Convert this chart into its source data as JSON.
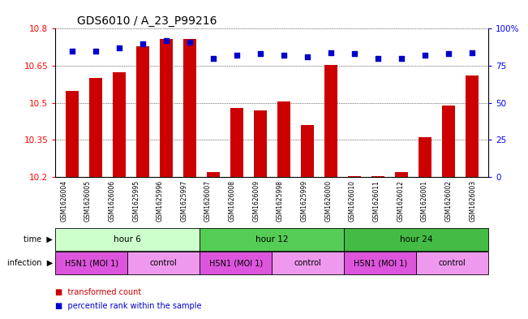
{
  "title": "GDS6010 / A_23_P99216",
  "samples": [
    "GSM1626004",
    "GSM1626005",
    "GSM1626006",
    "GSM1625995",
    "GSM1625996",
    "GSM1625997",
    "GSM1626007",
    "GSM1626008",
    "GSM1626009",
    "GSM1625998",
    "GSM1625999",
    "GSM1626000",
    "GSM1626010",
    "GSM1626011",
    "GSM1626012",
    "GSM1626001",
    "GSM1626002",
    "GSM1626003"
  ],
  "bar_values": [
    10.55,
    10.6,
    10.625,
    10.73,
    10.76,
    10.76,
    10.22,
    10.48,
    10.47,
    10.505,
    10.41,
    10.655,
    10.205,
    10.205,
    10.22,
    10.36,
    10.49,
    10.61
  ],
  "dot_values": [
    85,
    85,
    87,
    90,
    92,
    91,
    80,
    82,
    83,
    82,
    81,
    84,
    83,
    80,
    80,
    82,
    83,
    84
  ],
  "ymin": 10.2,
  "ymax": 10.8,
  "yticks": [
    10.2,
    10.35,
    10.5,
    10.65,
    10.8
  ],
  "y2ticks": [
    0,
    25,
    50,
    75,
    100
  ],
  "bar_color": "#cc0000",
  "dot_color": "#0000cc",
  "time_groups": [
    {
      "label": "hour 6",
      "start": 0,
      "end": 6,
      "color": "#ccffcc"
    },
    {
      "label": "hour 12",
      "start": 6,
      "end": 12,
      "color": "#55cc55"
    },
    {
      "label": "hour 24",
      "start": 12,
      "end": 18,
      "color": "#44bb44"
    }
  ],
  "infection_groups": [
    {
      "label": "H5N1 (MOI 1)",
      "start": 0,
      "end": 3,
      "color": "#dd55dd"
    },
    {
      "label": "control",
      "start": 3,
      "end": 6,
      "color": "#ee99ee"
    },
    {
      "label": "H5N1 (MOI 1)",
      "start": 6,
      "end": 9,
      "color": "#dd55dd"
    },
    {
      "label": "control",
      "start": 9,
      "end": 12,
      "color": "#ee99ee"
    },
    {
      "label": "H5N1 (MOI 1)",
      "start": 12,
      "end": 15,
      "color": "#dd55dd"
    },
    {
      "label": "control",
      "start": 15,
      "end": 18,
      "color": "#ee99ee"
    }
  ],
  "legend_items": [
    {
      "label": "transformed count",
      "color": "#cc0000"
    },
    {
      "label": "percentile rank within the sample",
      "color": "#0000cc"
    }
  ],
  "background_color": "#ffffff",
  "title_fontsize": 10,
  "tick_fontsize": 7.5,
  "sample_fontsize": 5.5,
  "row_fontsize": 7.5,
  "legend_fontsize": 7
}
